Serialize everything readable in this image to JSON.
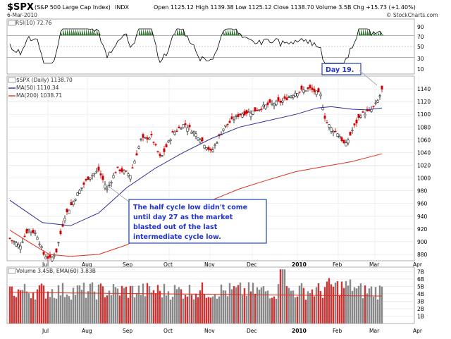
{
  "header": {
    "symbol": "$SPX",
    "name": "(S&P 500 Large Cap Index)",
    "exchange": "INDX",
    "date": "6-Mar-2010",
    "quote": "Open 1125.12   High 1139.38   Low 1125.12   Close 1138.70   Volume 3.5B   Chg +15.73 (+1.40%)",
    "watermark": "© StockCharts.com"
  },
  "rsi_panel": {
    "label": "RSI(10) 72.76",
    "ticks": [
      "90",
      "70",
      "50",
      "30",
      "10"
    ]
  },
  "price_panel": {
    "label_main": "$SPX (Daily) 1138.70",
    "label_ma50": "MA(50) 1110.34",
    "label_ma200": "MA(200) 1038.71",
    "ticks": [
      "1140",
      "1120",
      "1100",
      "1080",
      "1060",
      "1040",
      "1020",
      "1000",
      "980",
      "960",
      "940",
      "920",
      "900",
      "880"
    ]
  },
  "volume_panel": {
    "label": "Volume 3.45B, EMA(60) 3.83B",
    "ticks": [
      "7B",
      "6B",
      "5B",
      "4B",
      "3B",
      "2B",
      "1B"
    ]
  },
  "months": [
    "Jul",
    "Aug",
    "Sep",
    "Oct",
    "Nov",
    "Dec",
    "2010",
    "Feb",
    "Mar",
    "Apr"
  ],
  "annotations": {
    "day19": "Day 19.",
    "cycle_note": [
      "The half cycle low didn't come",
      "until day 27 as the market",
      "blasted out of the last",
      "intermediate cycle low."
    ]
  },
  "colors": {
    "ma50": "#2b2b9a",
    "ma200": "#e0301e",
    "up": "#000000",
    "down": "#cc0000",
    "rsi_fill": "#3a7a3a",
    "note_border": "#2244aa",
    "note_text": "#2233cc"
  },
  "chart_data": {
    "type": "line",
    "title": "$SPX (S&P 500 Large Cap Index) Daily",
    "series": [
      {
        "name": "$SPX",
        "x": [
          "Jul",
          "Aug",
          "Sep",
          "Oct",
          "Nov",
          "Dec",
          "2010",
          "Feb",
          "Mar"
        ],
        "values": [
          880,
          990,
          1020,
          1050,
          1045,
          1100,
          1135,
          1065,
          1138.7
        ]
      },
      {
        "name": "MA(50)",
        "values": [
          920,
          940,
          990,
          1030,
          1060,
          1090,
          1110,
          1115,
          1110.34
        ]
      },
      {
        "name": "MA(200)",
        "values": [
          900,
          878,
          890,
          940,
          980,
          1000,
          1020,
          1030,
          1038.71
        ]
      }
    ],
    "ylim": [
      870,
      1160
    ],
    "rsi": {
      "value": 72.76,
      "ylim": [
        0,
        100
      ]
    },
    "volume": {
      "last": "3.45B",
      "ema60": "3.83B",
      "ylim": [
        "0",
        "7B"
      ]
    }
  }
}
